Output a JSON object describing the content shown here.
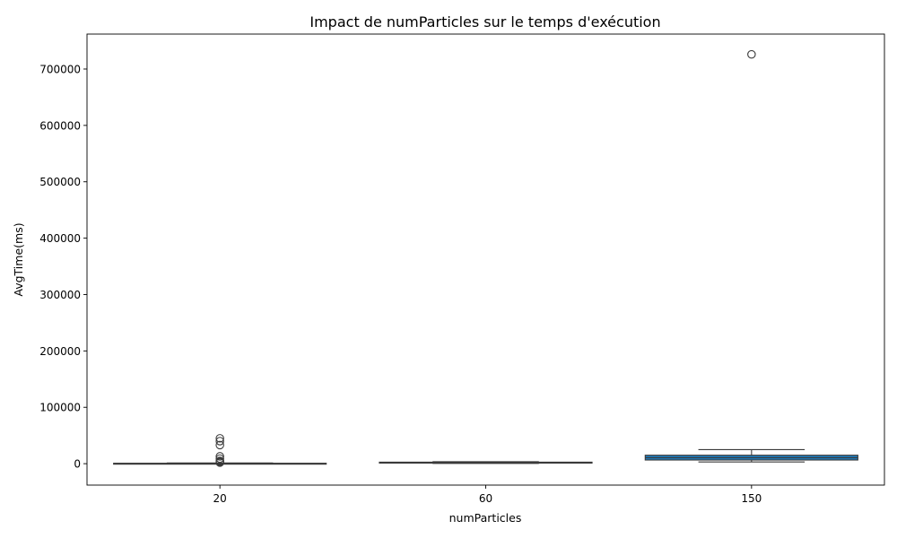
{
  "chart_data": {
    "type": "box",
    "title": "Impact de numParticles sur le temps d'exécution",
    "xlabel": "numParticles",
    "ylabel": "AvgTime(ms)",
    "categories": [
      "20",
      "60",
      "150"
    ],
    "ylim": [
      -38000,
      762000
    ],
    "yticks": [
      0,
      100000,
      200000,
      300000,
      400000,
      500000,
      600000,
      700000
    ],
    "ytick_labels": [
      "0",
      "100000",
      "200000",
      "300000",
      "400000",
      "500000",
      "600000",
      "700000"
    ],
    "grid": false,
    "legend": "none",
    "box_color": "#1f77b4",
    "edge_color": "#3a3a3a",
    "boxes": [
      {
        "category": "20",
        "whisker_low": 100,
        "q1": 200,
        "median": 400,
        "q3": 700,
        "whisker_high": 1200,
        "outliers": [
          45000,
          40000,
          33000,
          13000,
          9000,
          5000,
          3500,
          2500,
          2000
        ]
      },
      {
        "category": "60",
        "whisker_low": 500,
        "q1": 1000,
        "median": 1800,
        "q3": 2700,
        "whisker_high": 3500,
        "outliers": []
      },
      {
        "category": "150",
        "whisker_low": 3000,
        "q1": 6500,
        "median": 10500,
        "q3": 15000,
        "whisker_high": 25000,
        "outliers": [
          726000
        ]
      }
    ]
  }
}
